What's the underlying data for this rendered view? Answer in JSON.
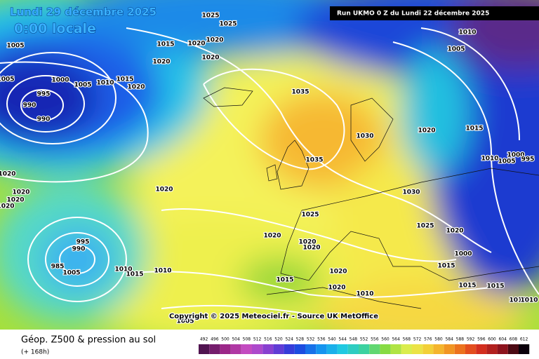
{
  "header": {
    "date": "Lundi 29 décembre 2025",
    "time": "0:00 locale",
    "run": "Run UKMO 0 Z du Lundi 22 décembre 2025"
  },
  "map": {
    "copyright": "Copyright © 2025 Meteociel.fr - Source UK MetOffice",
    "isobar_labels": [
      1025,
      1025,
      1005,
      1015,
      1020,
      1020,
      1020,
      1020,
      1005,
      1000,
      1005,
      1010,
      1015,
      1020,
      995,
      990,
      990,
      1035,
      1030,
      1020,
      1015,
      1010,
      1005,
      1000,
      995,
      1035,
      1020,
      1020,
      1020,
      1020,
      1020,
      1030,
      1025,
      1025,
      1020,
      995,
      990,
      1020,
      1020,
      1020,
      1000,
      985,
      1005,
      1010,
      1015,
      1010,
      1020,
      1015,
      1015,
      1020,
      1010,
      1015,
      1015,
      1010,
      1010,
      1005,
      1010,
      1005
    ]
  },
  "footer": {
    "title": "Géop. Z500 & pression au sol",
    "lead": "(+ 168h)",
    "scale": [
      492,
      496,
      500,
      504,
      508,
      512,
      516,
      520,
      524,
      528,
      532,
      536,
      540,
      544,
      548,
      552,
      556,
      560,
      564,
      568,
      572,
      576,
      580,
      584,
      588,
      592,
      596,
      600,
      604,
      608,
      612
    ]
  }
}
